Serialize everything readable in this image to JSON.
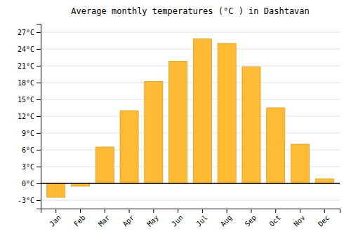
{
  "chart_data": {
    "type": "bar",
    "title": "Average monthly temperatures (°C ) in Dashtavan",
    "categories": [
      "Jan",
      "Feb",
      "Mar",
      "Apr",
      "May",
      "Jun",
      "Jul",
      "Aug",
      "Sep",
      "Oct",
      "Nov",
      "Dec"
    ],
    "values": [
      -2.5,
      -0.5,
      6.5,
      13.0,
      18.2,
      21.8,
      25.8,
      25.0,
      20.8,
      13.5,
      7.0,
      0.8
    ],
    "color": "#FFBB33",
    "ylim": [
      -4.5,
      28.5
    ],
    "yticks": [
      {
        "value": -3,
        "label": "-3°C"
      },
      {
        "value": 0,
        "label": "0°C"
      },
      {
        "value": 3,
        "label": "3°C"
      },
      {
        "value": 6,
        "label": "6°C"
      },
      {
        "value": 9,
        "label": "9°C"
      },
      {
        "value": 12,
        "label": "12°C"
      },
      {
        "value": 15,
        "label": "15°C"
      },
      {
        "value": 18,
        "label": "18°C"
      },
      {
        "value": 21,
        "label": "21°C"
      },
      {
        "value": 24,
        "label": "24°C"
      },
      {
        "value": 27,
        "label": "27°C"
      }
    ],
    "grid": true
  }
}
